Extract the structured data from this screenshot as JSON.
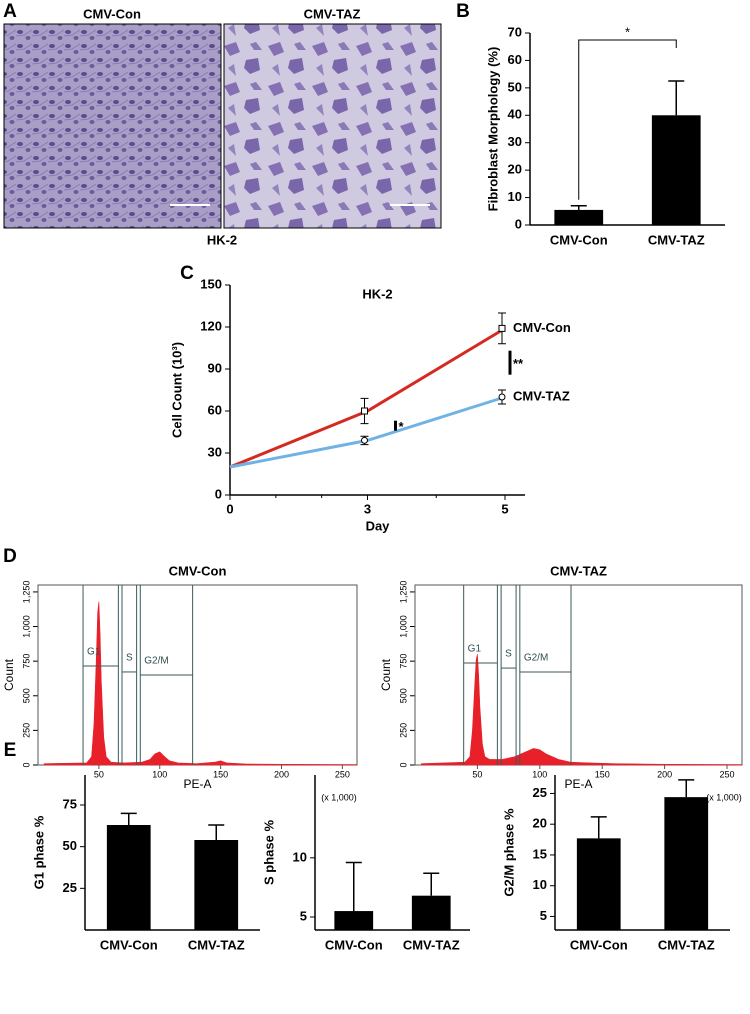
{
  "panel_labels": [
    "A",
    "B",
    "C",
    "D",
    "E"
  ],
  "figure_a": {
    "images": [
      {
        "title": "CMV-Con"
      },
      {
        "title": "CMV-TAZ"
      }
    ],
    "caption": "HK-2"
  },
  "chart_data": [
    {
      "type": "bar",
      "ylabel": "Fibroblast Morphology (%)",
      "categories": [
        "CMV-Con",
        "CMV-TAZ"
      ],
      "values": [
        5.5,
        40
      ],
      "errors": [
        1.5,
        12.5
      ],
      "color": "#000000",
      "ylim": [
        0,
        70
      ],
      "yticks": [
        0,
        10,
        20,
        30,
        40,
        50,
        60,
        70
      ],
      "annotations": [
        "*"
      ]
    },
    {
      "type": "line",
      "title": "HK-2",
      "xlabel": "Day",
      "ylabel": "Cell Count (10³)",
      "categories": [
        "0",
        "3",
        "5"
      ],
      "series": [
        {
          "name": "CMV-Con",
          "color": "#d42a20",
          "marker": "square",
          "values": [
            20,
            60,
            119
          ],
          "errors": [
            null,
            9,
            11
          ]
        },
        {
          "name": "CMV-TAZ",
          "color": "#6fb3e4",
          "marker": "circle",
          "values": [
            20,
            39,
            70
          ],
          "errors": [
            null,
            3,
            5
          ]
        }
      ],
      "ylim": [
        0,
        150
      ],
      "yticks": [
        0,
        30,
        60,
        90,
        120,
        150
      ],
      "annotations": [
        "*",
        "**"
      ]
    },
    {
      "type": "area",
      "title": "CMV-Con",
      "xlabel": "PE-A",
      "ylabel": "Count",
      "x_unit_label": "(x 1,000)",
      "color": "#e8202a",
      "x": [
        5,
        40,
        44,
        46,
        48,
        49,
        50,
        51,
        52,
        54,
        56,
        60,
        70,
        85,
        92,
        96,
        100,
        104,
        108,
        115,
        130,
        145,
        150,
        155,
        170,
        200,
        262
      ],
      "values": [
        10,
        15,
        60,
        300,
        800,
        1100,
        1180,
        950,
        600,
        200,
        60,
        20,
        15,
        20,
        40,
        80,
        95,
        60,
        30,
        15,
        10,
        20,
        30,
        15,
        8,
        5,
        3
      ],
      "xlim": [
        0,
        262
      ],
      "ylim": [
        0,
        1300
      ],
      "xticks": [
        50,
        100,
        150,
        200,
        250
      ],
      "yticks": [
        0,
        250,
        500,
        750,
        {
          "value": 1000,
          "label": "1,000"
        },
        {
          "value": 1250,
          "label": "1,250"
        }
      ],
      "gates": [
        {
          "label": "G1",
          "range": [
            37,
            66
          ],
          "level": 715
        },
        {
          "label": "S",
          "range": [
            69,
            81
          ],
          "level": 672
        },
        {
          "label": "G2/M",
          "range": [
            84,
            127
          ],
          "level": 650
        }
      ]
    },
    {
      "type": "area",
      "title": "CMV-TAZ",
      "xlabel": "PE-A",
      "ylabel": "Count",
      "x_unit_label": "(x 1,000)",
      "color": "#e8202a",
      "x": [
        5,
        40,
        44,
        46,
        48,
        49,
        50,
        51,
        52,
        54,
        56,
        60,
        70,
        80,
        90,
        95,
        100,
        105,
        115,
        125,
        140,
        160,
        200,
        262
      ],
      "values": [
        10,
        20,
        60,
        250,
        600,
        760,
        800,
        650,
        420,
        150,
        60,
        40,
        40,
        60,
        100,
        120,
        110,
        80,
        40,
        20,
        15,
        10,
        5,
        3
      ],
      "xlim": [
        0,
        262
      ],
      "ylim": [
        0,
        1300
      ],
      "xticks": [
        50,
        100,
        150,
        200,
        250
      ],
      "yticks": [
        0,
        250,
        500,
        750,
        {
          "value": 1000,
          "label": "1,000"
        },
        {
          "value": 1250,
          "label": "1,250"
        }
      ],
      "gates": [
        {
          "label": "G1",
          "range": [
            39,
            66
          ],
          "level": 737
        },
        {
          "label": "S",
          "range": [
            69,
            81
          ],
          "level": 700
        },
        {
          "label": "G2/M",
          "range": [
            84,
            125
          ],
          "level": 672
        }
      ]
    },
    {
      "type": "bar",
      "ylabel": "G1 phase %",
      "categories": [
        "CMV-Con",
        "CMV-TAZ"
      ],
      "values": [
        63,
        54
      ],
      "errors": [
        7,
        9
      ],
      "color": "#000000",
      "ylim": [
        0,
        93
      ],
      "yticks": [
        25,
        50,
        75
      ]
    },
    {
      "type": "bar",
      "ylabel": "S phase %",
      "categories": [
        "CMV-Con",
        "CMV-TAZ"
      ],
      "values": [
        5.5,
        6.8
      ],
      "errors": [
        4.1,
        1.9
      ],
      "color": "#000000",
      "ylim": [
        3.9,
        17
      ],
      "yticks": [
        5,
        10
      ]
    },
    {
      "type": "bar",
      "ylabel": "G2/M phase %",
      "categories": [
        "CMV-Con",
        "CMV-TAZ"
      ],
      "values": [
        17.7,
        24.4
      ],
      "errors": [
        3.5,
        2.8
      ],
      "color": "#000000",
      "ylim": [
        2.8,
        28
      ],
      "yticks": [
        5,
        10,
        15,
        20,
        25
      ]
    }
  ]
}
